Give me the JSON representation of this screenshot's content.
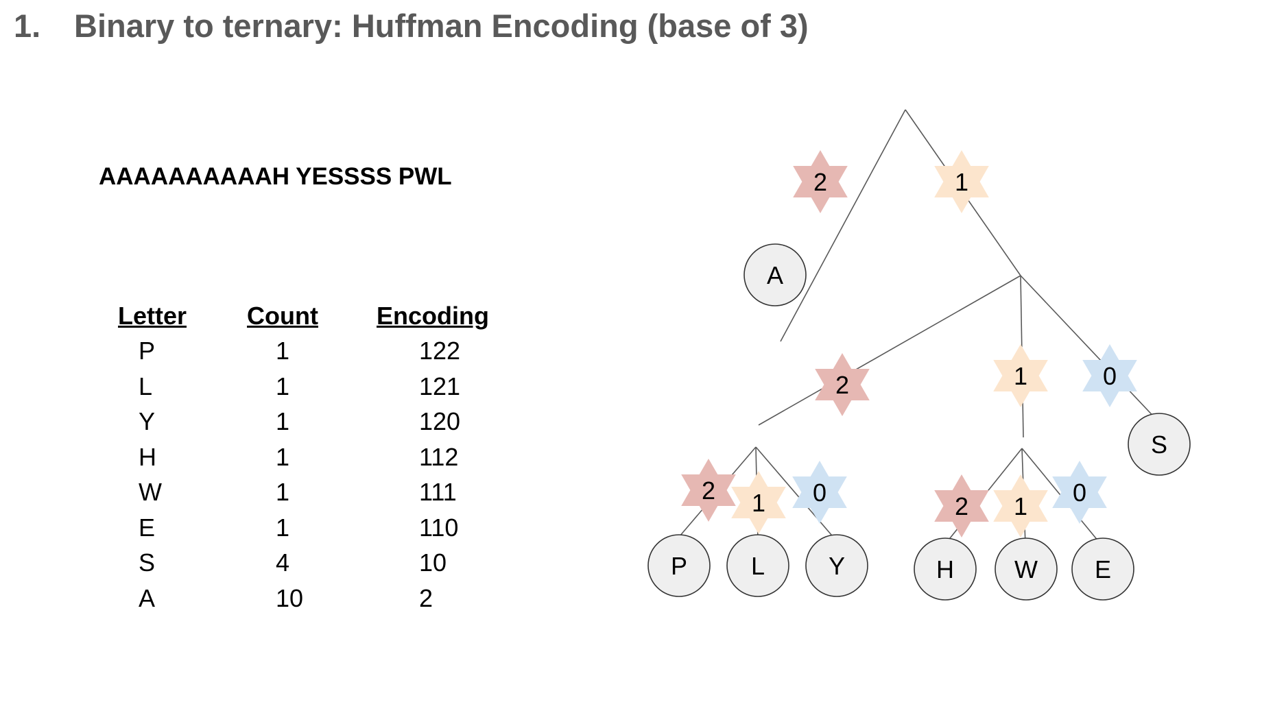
{
  "title": {
    "number": "1.",
    "text": "Binary to ternary: Huffman Encoding (base of 3)"
  },
  "message": "AAAAAAAAAAH YESSSS PWL",
  "table": {
    "headers": {
      "letter": "Letter",
      "count": "Count",
      "encoding": "Encoding"
    },
    "rows": [
      {
        "letter": "P",
        "count": "1",
        "encoding": "122"
      },
      {
        "letter": "L",
        "count": "1",
        "encoding": "121"
      },
      {
        "letter": "Y",
        "count": "1",
        "encoding": "120"
      },
      {
        "letter": "H",
        "count": "1",
        "encoding": "112"
      },
      {
        "letter": "W",
        "count": "1",
        "encoding": "111"
      },
      {
        "letter": "E",
        "count": "1",
        "encoding": "110"
      },
      {
        "letter": "S",
        "count": "4",
        "encoding": "10"
      },
      {
        "letter": "A",
        "count": "10",
        "encoding": "2"
      }
    ]
  },
  "tree": {
    "colors": {
      "digit_2": "#e6b8b3",
      "digit_1": "#fce5cd",
      "digit_0": "#cfe2f3",
      "leaf_fill": "#efefef",
      "line": "#595959"
    },
    "branch_digits": [
      "2",
      "1",
      "2",
      "1",
      "0",
      "2",
      "1",
      "0",
      "2",
      "1",
      "0"
    ],
    "leaves": [
      "A",
      "S",
      "P",
      "L",
      "Y",
      "H",
      "W",
      "E"
    ]
  }
}
